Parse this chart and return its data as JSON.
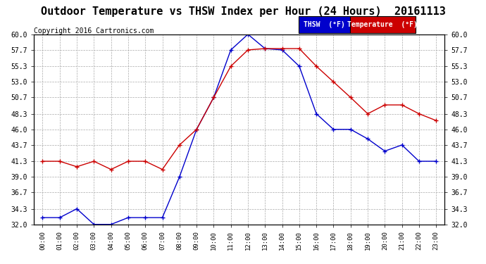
{
  "title": "Outdoor Temperature vs THSW Index per Hour (24 Hours)  20161113",
  "copyright": "Copyright 2016 Cartronics.com",
  "hours": [
    "00:00",
    "01:00",
    "02:00",
    "03:00",
    "04:00",
    "05:00",
    "06:00",
    "07:00",
    "08:00",
    "09:00",
    "10:00",
    "11:00",
    "12:00",
    "13:00",
    "14:00",
    "15:00",
    "16:00",
    "17:00",
    "18:00",
    "19:00",
    "20:00",
    "21:00",
    "22:00",
    "23:00"
  ],
  "temperature": [
    41.3,
    41.3,
    40.5,
    41.3,
    40.1,
    41.3,
    41.3,
    40.1,
    43.7,
    46.0,
    50.7,
    55.3,
    57.7,
    57.9,
    57.9,
    57.9,
    55.3,
    53.0,
    50.7,
    48.3,
    49.6,
    49.6,
    48.3,
    47.3
  ],
  "thsw": [
    33.0,
    33.0,
    34.3,
    32.0,
    32.0,
    33.0,
    33.0,
    33.0,
    39.0,
    46.0,
    50.7,
    57.7,
    60.0,
    57.9,
    57.7,
    55.3,
    48.3,
    46.0,
    46.0,
    44.6,
    42.8,
    43.7,
    41.3,
    41.3
  ],
  "ylim": [
    32.0,
    60.0
  ],
  "yticks": [
    32.0,
    34.3,
    36.7,
    39.0,
    41.3,
    43.7,
    46.0,
    48.3,
    50.7,
    53.0,
    55.3,
    57.7,
    60.0
  ],
  "thsw_color": "#0000cc",
  "temp_color": "#cc0000",
  "thsw_label": "THSW  (°F)",
  "temp_label": "Temperature  (°F)",
  "background_color": "#ffffff",
  "grid_color": "#aaaaaa",
  "legend_thsw_bg": "#0000cc",
  "legend_temp_bg": "#cc0000",
  "title_fontsize": 11,
  "copyright_fontsize": 7
}
